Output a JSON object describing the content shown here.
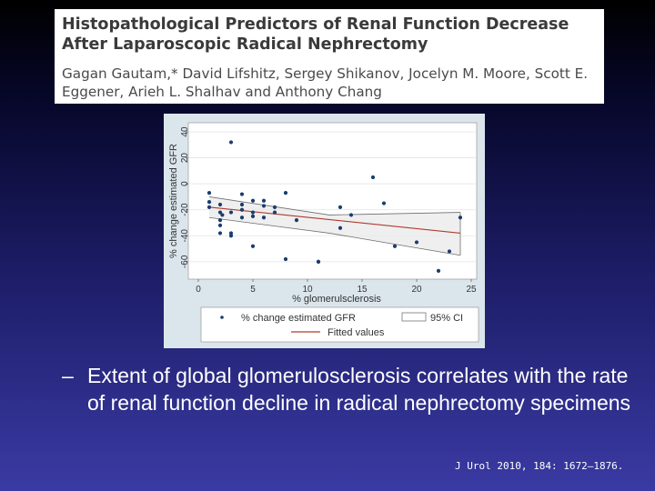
{
  "header": {
    "title": "Histopathological Predictors of Renal Function Decrease After Laparoscopic Radical Nephrectomy",
    "authors": "Gagan Gautam,* David Lifshitz, Sergey Shikanov, Jocelyn M. Moore, Scott E. Eggener, Arieh L. Shalhav and Anthony Chang"
  },
  "bullet": {
    "dash": "–",
    "text": "Extent of global glomerulosclerosis correlates with the rate of renal function decline in radical nephrectomy specimens"
  },
  "citation": "J Urol 2010, 184: 1672–1876.",
  "chart_data": {
    "type": "scatter",
    "title": "",
    "xlabel": "% glomerulsclerosis",
    "ylabel": "% change estimated GFR",
    "xlim": [
      0,
      25
    ],
    "ylim": [
      -65,
      40
    ],
    "xticks": [
      "0",
      "5",
      "10",
      "15",
      "20",
      "25"
    ],
    "yticks": [
      "-60",
      "-40",
      "-20",
      "0",
      "20",
      "40"
    ],
    "grid": true,
    "legend": {
      "placement": "bottom",
      "entries": [
        "% change estimated GFR",
        "95% CI",
        "Fitted values"
      ]
    },
    "series": [
      {
        "name": "% change estimated GFR",
        "kind": "scatter",
        "color": "#1a3d6e",
        "points": [
          [
            1,
            -7
          ],
          [
            1,
            -14
          ],
          [
            1,
            -18
          ],
          [
            2,
            -16
          ],
          [
            2,
            -22
          ],
          [
            2,
            -28
          ],
          [
            2,
            -32
          ],
          [
            2,
            -38
          ],
          [
            2.2,
            -24
          ],
          [
            3,
            32
          ],
          [
            3,
            -22
          ],
          [
            3,
            -38
          ],
          [
            3,
            -40
          ],
          [
            4,
            -8
          ],
          [
            4,
            -16
          ],
          [
            4,
            -20
          ],
          [
            4,
            -26
          ],
          [
            5,
            -13
          ],
          [
            5,
            -22
          ],
          [
            5,
            -25
          ],
          [
            5,
            -48
          ],
          [
            6,
            -13
          ],
          [
            6,
            -17
          ],
          [
            6,
            -26
          ],
          [
            7,
            -18
          ],
          [
            7,
            -22
          ],
          [
            8,
            -7
          ],
          [
            8,
            -58
          ],
          [
            9,
            -28
          ],
          [
            11,
            -60
          ],
          [
            11,
            -60
          ],
          [
            13,
            -18
          ],
          [
            13,
            -34
          ],
          [
            14,
            -24
          ],
          [
            16,
            5
          ],
          [
            17,
            -15
          ],
          [
            18,
            -48
          ],
          [
            20,
            -45
          ],
          [
            22,
            -67
          ],
          [
            23,
            -52
          ],
          [
            24,
            -26
          ]
        ]
      },
      {
        "name": "Fitted values",
        "kind": "line",
        "color": "#b03a2e",
        "points": [
          [
            1,
            -18
          ],
          [
            24,
            -38
          ]
        ]
      },
      {
        "name": "95% CI",
        "kind": "band",
        "color": "#6e6e6e",
        "upper": [
          [
            1,
            -10
          ],
          [
            12,
            -24
          ],
          [
            24,
            -22
          ]
        ],
        "lower": [
          [
            1,
            -26
          ],
          [
            12,
            -38
          ],
          [
            24,
            -55
          ]
        ]
      }
    ]
  }
}
